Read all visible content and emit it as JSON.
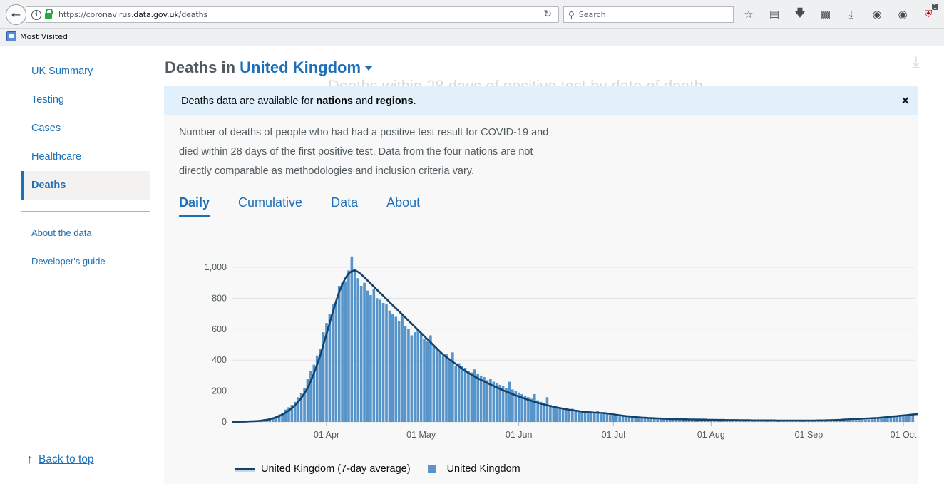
{
  "browser": {
    "url_prefix": "https://coronavirus.",
    "url_domain": "data.gov.uk",
    "url_path": "/deaths",
    "search_placeholder": "Search",
    "bookmark": "Most Visited",
    "extension_badge": "1"
  },
  "sidebar": {
    "items": [
      {
        "label": "UK Summary"
      },
      {
        "label": "Testing"
      },
      {
        "label": "Cases"
      },
      {
        "label": "Healthcare"
      },
      {
        "label": "Deaths"
      }
    ],
    "sub_items": [
      {
        "label": "About the data"
      },
      {
        "label": "Developer's guide"
      }
    ],
    "back_to_top": "Back to top"
  },
  "header": {
    "title_prefix": "Deaths in",
    "area": "United Kingdom",
    "ghost_title": "Deaths within 28 days of positive test by date of death"
  },
  "banner": {
    "part1": "Deaths data are available for ",
    "bold1": "nations",
    "part2": " and ",
    "bold2": "regions",
    "part3": ".",
    "close": "×"
  },
  "description": "Number of deaths of people who had had a positive test result for COVID-19 and died within 28 days of the first positive test. Data from the four nations are not directly comparable as methodologies and inclusion criteria vary.",
  "tabs": [
    {
      "label": "Daily",
      "active": true
    },
    {
      "label": "Cumulative",
      "active": false
    },
    {
      "label": "Data",
      "active": false
    },
    {
      "label": "About",
      "active": false
    }
  ],
  "colors": {
    "accent": "#1d70b8",
    "bar": "#5694ca",
    "line": "#12436d"
  },
  "chart_data": {
    "type": "bar",
    "start_date": "2020-03-02",
    "ylim": [
      0,
      1000
    ],
    "yticks": [
      "0",
      "200",
      "400",
      "600",
      "800",
      "1,000"
    ],
    "xticks": [
      {
        "label": "01 Apr",
        "date": "2020-04-01"
      },
      {
        "label": "01 May",
        "date": "2020-05-01"
      },
      {
        "label": "01 Jun",
        "date": "2020-06-01"
      },
      {
        "label": "01 Jul",
        "date": "2020-07-01"
      },
      {
        "label": "01 Aug",
        "date": "2020-08-01"
      },
      {
        "label": "01 Sep",
        "date": "2020-09-01"
      },
      {
        "label": "01 Oct",
        "date": "2020-10-01"
      }
    ],
    "series": [
      {
        "name": "United Kingdom (7-day average)",
        "type": "line"
      },
      {
        "name": "United Kingdom",
        "type": "bar"
      }
    ],
    "daily_values": [
      1,
      1,
      2,
      3,
      2,
      4,
      5,
      6,
      8,
      12,
      14,
      18,
      22,
      30,
      40,
      48,
      60,
      80,
      95,
      110,
      130,
      160,
      185,
      220,
      280,
      330,
      370,
      430,
      470,
      580,
      640,
      700,
      760,
      780,
      880,
      900,
      910,
      980,
      1070,
      990,
      930,
      880,
      900,
      850,
      820,
      860,
      800,
      790,
      770,
      760,
      720,
      700,
      680,
      650,
      690,
      620,
      600,
      560,
      580,
      600,
      570,
      540,
      520,
      560,
      490,
      470,
      450,
      430,
      440,
      400,
      450,
      360,
      380,
      360,
      350,
      330,
      320,
      340,
      310,
      300,
      290,
      270,
      280,
      260,
      250,
      240,
      230,
      220,
      260,
      210,
      200,
      190,
      180,
      170,
      160,
      150,
      180,
      140,
      130,
      120,
      160,
      110,
      105,
      100,
      95,
      90,
      85,
      80,
      85,
      75,
      70,
      65,
      70,
      60,
      60,
      55,
      70,
      50,
      60,
      50,
      45,
      40,
      38,
      36,
      40,
      34,
      32,
      30,
      28,
      30,
      26,
      24,
      22,
      20,
      22,
      19,
      18,
      18,
      17,
      16,
      16,
      15,
      15,
      14,
      14,
      14,
      13,
      13,
      13,
      12,
      12,
      12,
      12,
      11,
      11,
      11,
      11,
      11,
      10,
      10,
      10,
      10,
      10,
      10,
      10,
      10,
      9,
      9,
      9,
      9,
      9,
      9,
      9,
      9,
      9,
      8,
      8,
      8,
      8,
      8,
      8,
      8,
      8,
      8,
      7,
      7,
      7,
      7,
      7,
      7,
      7,
      7,
      7,
      8,
      8,
      9,
      9,
      10,
      11,
      12,
      13,
      14,
      15,
      17,
      18,
      20,
      22,
      24,
      26,
      28,
      30,
      32,
      34,
      36,
      38,
      40,
      45,
      50,
      42,
      48,
      52,
      55,
      60,
      50,
      45,
      40,
      30,
      20
    ],
    "avg_values": [
      1,
      1,
      1,
      2,
      2,
      3,
      4,
      5,
      6,
      8,
      11,
      14,
      18,
      23,
      30,
      38,
      48,
      60,
      74,
      90,
      108,
      130,
      155,
      185,
      220,
      265,
      315,
      370,
      430,
      500,
      570,
      640,
      710,
      780,
      840,
      890,
      930,
      960,
      975,
      980,
      970,
      955,
      935,
      915,
      895,
      875,
      855,
      835,
      815,
      795,
      775,
      755,
      735,
      715,
      695,
      675,
      655,
      635,
      615,
      595,
      575,
      555,
      535,
      515,
      495,
      475,
      455,
      435,
      420,
      405,
      390,
      375,
      360,
      345,
      330,
      318,
      305,
      293,
      282,
      272,
      262,
      252,
      242,
      232,
      223,
      214,
      205,
      196,
      188,
      180,
      172,
      164,
      157,
      150,
      143,
      136,
      130,
      124,
      118,
      113,
      108,
      103,
      98,
      94,
      90,
      86,
      82,
      79,
      76,
      73,
      70,
      67,
      65,
      63,
      62,
      60,
      60,
      58,
      57,
      55,
      52,
      49,
      46,
      43,
      40,
      38,
      36,
      34,
      32,
      30,
      28,
      27,
      26,
      25,
      24,
      23,
      22,
      21,
      20,
      19,
      19,
      18,
      18,
      17,
      17,
      16,
      16,
      16,
      15,
      15,
      15,
      14,
      14,
      14,
      13,
      13,
      13,
      12,
      12,
      12,
      12,
      11,
      11,
      11,
      11,
      10,
      10,
      10,
      10,
      10,
      10,
      10,
      10,
      9,
      9,
      9,
      9,
      9,
      9,
      9,
      9,
      9,
      9,
      9,
      9,
      9,
      10,
      10,
      10,
      11,
      11,
      12,
      13,
      14,
      15,
      16,
      17,
      18,
      19,
      20,
      21,
      22,
      23,
      24,
      25,
      26,
      28,
      30,
      32,
      34,
      36,
      38,
      40,
      42,
      44,
      46,
      48,
      50,
      51,
      52,
      52,
      51,
      50,
      48,
      45,
      40,
      35
    ]
  }
}
